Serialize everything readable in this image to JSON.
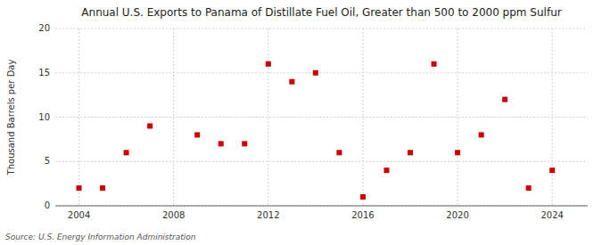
{
  "chart_data": {
    "type": "scatter",
    "title": "Annual U.S. Exports to Panama of Distillate Fuel Oil, Greater than 500 to 2000 ppm Sulfur",
    "ylabel": "Thousand Barrels per Day",
    "source": "Source: U.S. Energy Information Administration",
    "color": "#cc0000",
    "marker": "square",
    "grid": true,
    "xlim": [
      2003.0,
      2025.5
    ],
    "ylim": [
      0,
      20
    ],
    "xticks": [
      2004,
      2008,
      2012,
      2016,
      2020,
      2024
    ],
    "yticks": [
      0,
      5,
      10,
      15,
      20
    ],
    "x": [
      2004,
      2005,
      2006,
      2007,
      2009,
      2010,
      2011,
      2012,
      2013,
      2014,
      2015,
      2016,
      2017,
      2018,
      2019,
      2020,
      2021,
      2022,
      2023,
      2024
    ],
    "y": [
      2,
      2,
      6,
      9,
      8,
      7,
      7,
      16,
      14,
      15,
      6,
      1,
      4,
      6,
      16,
      6,
      8,
      12,
      2,
      4
    ]
  }
}
